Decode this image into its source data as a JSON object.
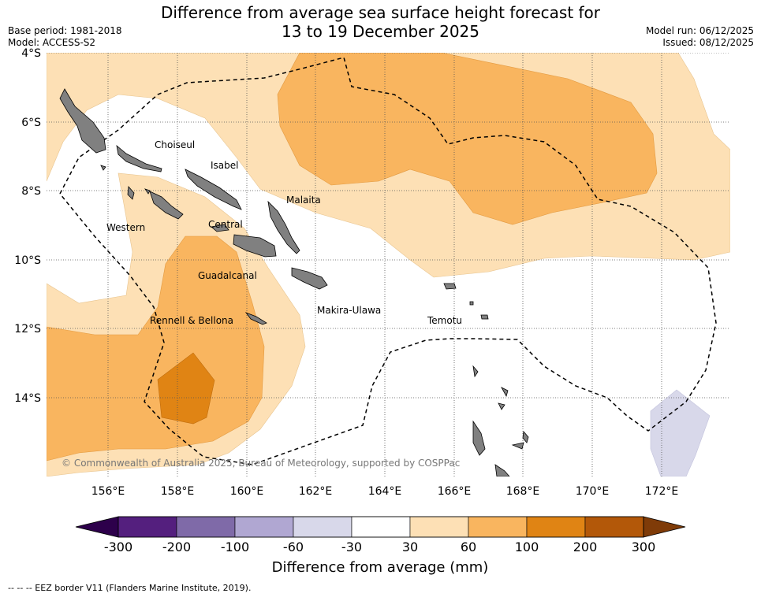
{
  "title": {
    "line1": "Difference from average sea surface height forecast for",
    "line2": "13 to 19 December 2025"
  },
  "meta": {
    "base_period": "Base period: 1981-2018",
    "model": "Model: ACCESS-S2",
    "model_run": "Model run: 06/12/2025",
    "issued": "Issued: 08/12/2025"
  },
  "map": {
    "lat_labels": [
      "4°S",
      "6°S",
      "8°S",
      "10°S",
      "12°S",
      "14°S"
    ],
    "lon_labels": [
      "156°E",
      "158°E",
      "160°E",
      "162°E",
      "164°E",
      "166°E",
      "168°E",
      "170°E",
      "172°E"
    ],
    "provinces": [
      "Choiseul",
      "Isabel",
      "Malaita",
      "Western",
      "Central",
      "Guadalcanal",
      "Makira-Ulawa",
      "Temotu",
      "Rennell & Bellona"
    ],
    "copyright": "© Commonwealth of Australia 2025, Bureau of Meteorology, supported by COSPPac"
  },
  "colorbar": {
    "ticks": [
      "-300",
      "-200",
      "-100",
      "-60",
      "-30",
      "30",
      "60",
      "100",
      "200",
      "300"
    ],
    "colors": [
      "#541f7e",
      "#7f6aa8",
      "#b0a7d2",
      "#d8d8ea",
      "#ffffff",
      "#fde0b5",
      "#f9b55f",
      "#e08414",
      "#b35809"
    ],
    "end_low_color": "#2d004b",
    "end_high_color": "#7f3b08",
    "label": "Difference from average (mm)"
  },
  "footer": "--  --  -- EEZ border V11 (Flanders Marine Institute, 2019)."
}
